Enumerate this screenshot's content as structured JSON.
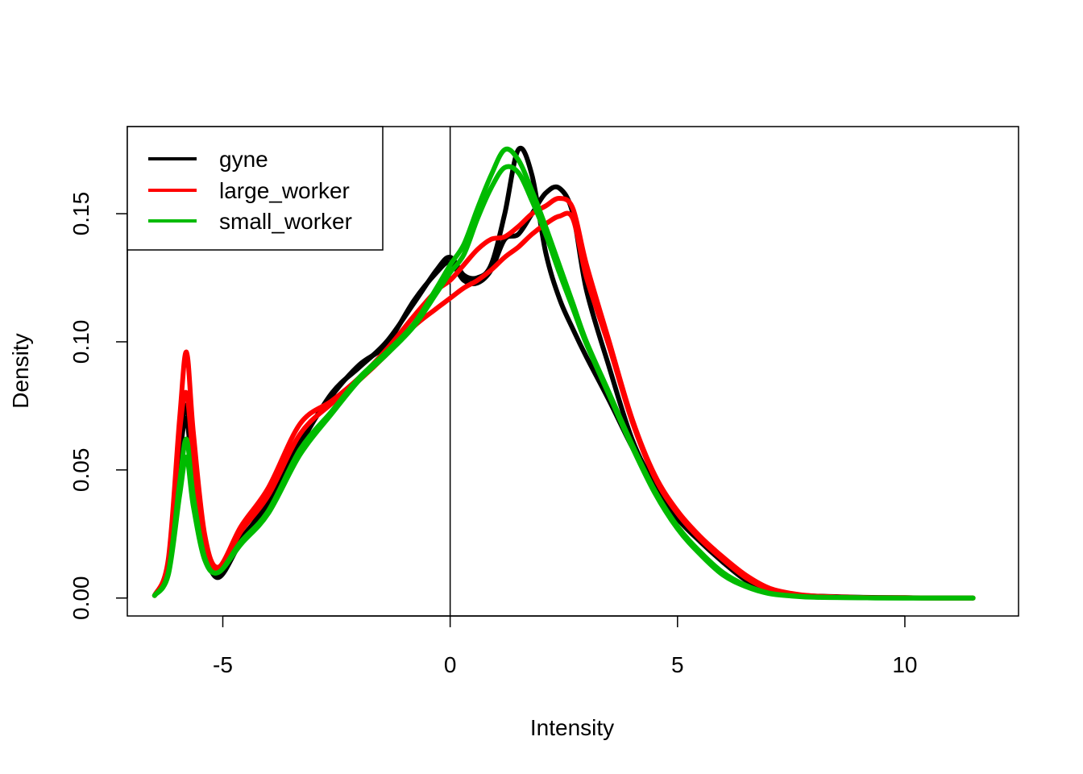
{
  "chart_data": {
    "type": "line",
    "title": "",
    "xlabel": "Intensity",
    "ylabel": "Density",
    "xlim": [
      -7.1,
      12.5
    ],
    "ylim": [
      -0.007,
      0.184
    ],
    "x_ticks": [
      -5,
      0,
      5,
      10
    ],
    "x_tick_labels": [
      "-5",
      "0",
      "5",
      "10"
    ],
    "y_ticks": [
      0.0,
      0.05,
      0.1,
      0.15
    ],
    "y_tick_labels": [
      "0.00",
      "0.05",
      "0.10",
      "0.15"
    ],
    "vertical_reference_line": 0,
    "grid": false,
    "legend": {
      "position": "top-left",
      "entries": [
        {
          "label": "gyne",
          "color": "#000000"
        },
        {
          "label": "large_worker",
          "color": "#ff0000"
        },
        {
          "label": "small_worker",
          "color": "#00bb00"
        }
      ]
    },
    "x": [
      -6.5,
      -6.2,
      -5.95,
      -5.8,
      -5.65,
      -5.4,
      -5.1,
      -4.6,
      -4.0,
      -3.3,
      -2.6,
      -2.0,
      -1.4,
      -0.8,
      -0.3,
      0.0,
      0.3,
      0.6,
      0.9,
      1.2,
      1.5,
      1.8,
      2.1,
      2.4,
      2.7,
      3.0,
      3.5,
      4.0,
      4.5,
      5.0,
      5.5,
      6.0,
      6.5,
      7.0,
      7.5,
      8.0,
      9.0,
      10.0,
      10.8,
      11.5
    ],
    "series": [
      {
        "name": "gyne",
        "color": "#000000",
        "values": [
          0.001,
          0.012,
          0.06,
          0.075,
          0.05,
          0.02,
          0.008,
          0.022,
          0.038,
          0.06,
          0.08,
          0.09,
          0.1,
          0.115,
          0.128,
          0.133,
          0.126,
          0.125,
          0.13,
          0.15,
          0.175,
          0.165,
          0.135,
          0.117,
          0.105,
          0.094,
          0.077,
          0.059,
          0.043,
          0.031,
          0.023,
          0.015,
          0.008,
          0.003,
          0.0015,
          0.0008,
          0.0003,
          0.0001,
          5e-05,
          0.0
        ]
      },
      {
        "name": "gyne",
        "color": "#000000",
        "values": [
          0.001,
          0.011,
          0.055,
          0.07,
          0.046,
          0.018,
          0.009,
          0.023,
          0.037,
          0.061,
          0.079,
          0.091,
          0.099,
          0.116,
          0.127,
          0.131,
          0.124,
          0.123,
          0.128,
          0.14,
          0.142,
          0.15,
          0.158,
          0.16,
          0.15,
          0.12,
          0.09,
          0.062,
          0.044,
          0.031,
          0.022,
          0.014,
          0.007,
          0.003,
          0.0013,
          0.0006,
          0.0002,
          0.0001,
          0.0,
          0.0
        ]
      },
      {
        "name": "large_worker",
        "color": "#ff0000",
        "values": [
          0.001,
          0.015,
          0.07,
          0.096,
          0.065,
          0.025,
          0.012,
          0.028,
          0.043,
          0.068,
          0.077,
          0.086,
          0.097,
          0.11,
          0.12,
          0.124,
          0.13,
          0.136,
          0.14,
          0.141,
          0.145,
          0.15,
          0.153,
          0.156,
          0.152,
          0.13,
          0.1,
          0.07,
          0.048,
          0.034,
          0.024,
          0.016,
          0.009,
          0.004,
          0.0018,
          0.0008,
          0.0002,
          0.0001,
          0.0,
          0.0
        ]
      },
      {
        "name": "large_worker",
        "color": "#ff0000",
        "values": [
          0.001,
          0.013,
          0.065,
          0.08,
          0.055,
          0.022,
          0.011,
          0.026,
          0.04,
          0.064,
          0.076,
          0.085,
          0.095,
          0.106,
          0.113,
          0.117,
          0.121,
          0.124,
          0.128,
          0.133,
          0.137,
          0.142,
          0.146,
          0.149,
          0.148,
          0.125,
          0.098,
          0.069,
          0.047,
          0.033,
          0.023,
          0.015,
          0.008,
          0.0035,
          0.0016,
          0.0007,
          0.0002,
          0.0001,
          0.0,
          0.0
        ]
      },
      {
        "name": "small_worker",
        "color": "#00bb00",
        "values": [
          0.001,
          0.01,
          0.045,
          0.062,
          0.04,
          0.016,
          0.01,
          0.022,
          0.034,
          0.058,
          0.073,
          0.086,
          0.096,
          0.107,
          0.121,
          0.13,
          0.138,
          0.152,
          0.165,
          0.175,
          0.171,
          0.159,
          0.145,
          0.13,
          0.115,
          0.1,
          0.08,
          0.06,
          0.042,
          0.028,
          0.018,
          0.01,
          0.005,
          0.002,
          0.0009,
          0.0004,
          0.0001,
          0.0,
          0.0,
          0.0
        ]
      },
      {
        "name": "small_worker",
        "color": "#00bb00",
        "values": [
          0.001,
          0.009,
          0.04,
          0.055,
          0.036,
          0.015,
          0.01,
          0.021,
          0.033,
          0.056,
          0.072,
          0.085,
          0.095,
          0.106,
          0.119,
          0.127,
          0.134,
          0.148,
          0.16,
          0.168,
          0.166,
          0.155,
          0.142,
          0.127,
          0.113,
          0.099,
          0.079,
          0.059,
          0.041,
          0.027,
          0.017,
          0.009,
          0.0045,
          0.0018,
          0.0008,
          0.0003,
          0.0001,
          0.0,
          0.0,
          0.0
        ]
      }
    ]
  }
}
